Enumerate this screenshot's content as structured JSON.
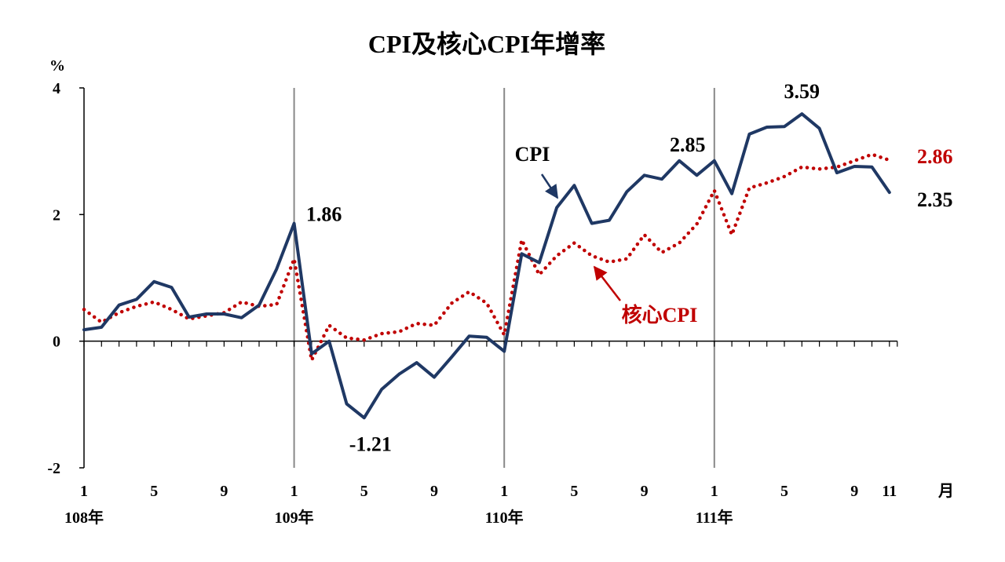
{
  "chart_data": {
    "type": "line",
    "title": "CPI及核心CPI年增率",
    "y_unit_label": "%",
    "x_unit_label": "月",
    "ylim": [
      -2,
      4
    ],
    "yticks": [
      "4",
      "2",
      "0",
      "-2"
    ],
    "month_tick_labels": [
      {
        "index": 0,
        "label": "1"
      },
      {
        "index": 4,
        "label": "5"
      },
      {
        "index": 8,
        "label": "9"
      },
      {
        "index": 12,
        "label": "1"
      },
      {
        "index": 16,
        "label": "5"
      },
      {
        "index": 20,
        "label": "9"
      },
      {
        "index": 24,
        "label": "1"
      },
      {
        "index": 28,
        "label": "5"
      },
      {
        "index": 32,
        "label": "9"
      },
      {
        "index": 36,
        "label": "1"
      },
      {
        "index": 40,
        "label": "5"
      },
      {
        "index": 44,
        "label": "9"
      },
      {
        "index": 46,
        "label": "11"
      }
    ],
    "year_labels": [
      {
        "index": 0,
        "label": "108年"
      },
      {
        "index": 12,
        "label": "109年"
      },
      {
        "index": 24,
        "label": "110年"
      },
      {
        "index": 36,
        "label": "111年"
      }
    ],
    "year_dividers": [
      12,
      24,
      36
    ],
    "grid": false,
    "series": [
      {
        "name": "CPI",
        "color": "#1f3864",
        "style": "solid",
        "values": [
          0.18,
          0.22,
          0.57,
          0.66,
          0.94,
          0.85,
          0.38,
          0.43,
          0.43,
          0.37,
          0.57,
          1.14,
          1.86,
          -0.2,
          0.0,
          -0.99,
          -1.21,
          -0.76,
          -0.52,
          -0.34,
          -0.57,
          -0.25,
          0.08,
          0.06,
          -0.16,
          1.38,
          1.24,
          2.11,
          2.46,
          1.86,
          1.91,
          2.36,
          2.62,
          2.56,
          2.85,
          2.62,
          2.85,
          2.33,
          3.27,
          3.38,
          3.39,
          3.59,
          3.36,
          2.66,
          2.76,
          2.75,
          2.35
        ]
      },
      {
        "name": "核心CPI",
        "color": "#c00000",
        "style": "dotted",
        "values": [
          0.5,
          0.3,
          0.45,
          0.55,
          0.62,
          0.5,
          0.35,
          0.4,
          0.45,
          0.62,
          0.55,
          0.58,
          1.3,
          -0.3,
          0.25,
          0.05,
          0.02,
          0.12,
          0.15,
          0.28,
          0.25,
          0.6,
          0.78,
          0.6,
          0.1,
          1.6,
          1.05,
          1.35,
          1.55,
          1.35,
          1.25,
          1.3,
          1.68,
          1.4,
          1.55,
          1.85,
          2.38,
          1.68,
          2.42,
          2.5,
          2.6,
          2.75,
          2.72,
          2.75,
          2.85,
          2.95,
          2.86
        ]
      }
    ],
    "annotations": [
      {
        "text": "1.86",
        "index": 12,
        "value": 1.86,
        "color": "#000000"
      },
      {
        "text": "-1.21",
        "index": 16,
        "value": -1.21,
        "color": "#000000"
      },
      {
        "text": "2.85",
        "index": 36,
        "value": 2.85,
        "color": "#000000"
      },
      {
        "text": "3.59",
        "index": 41,
        "value": 3.59,
        "color": "#000000"
      },
      {
        "text": "2.86",
        "index": 46,
        "value": 2.86,
        "color": "#c00000"
      },
      {
        "text": "2.35",
        "index": 46,
        "value": 2.35,
        "color": "#000000"
      }
    ],
    "series_callouts": [
      {
        "text": "CPI",
        "color": "#000000",
        "arrow_color": "#1f3864"
      },
      {
        "text": "核心CPI",
        "color": "#c00000",
        "arrow_color": "#c00000"
      }
    ]
  }
}
